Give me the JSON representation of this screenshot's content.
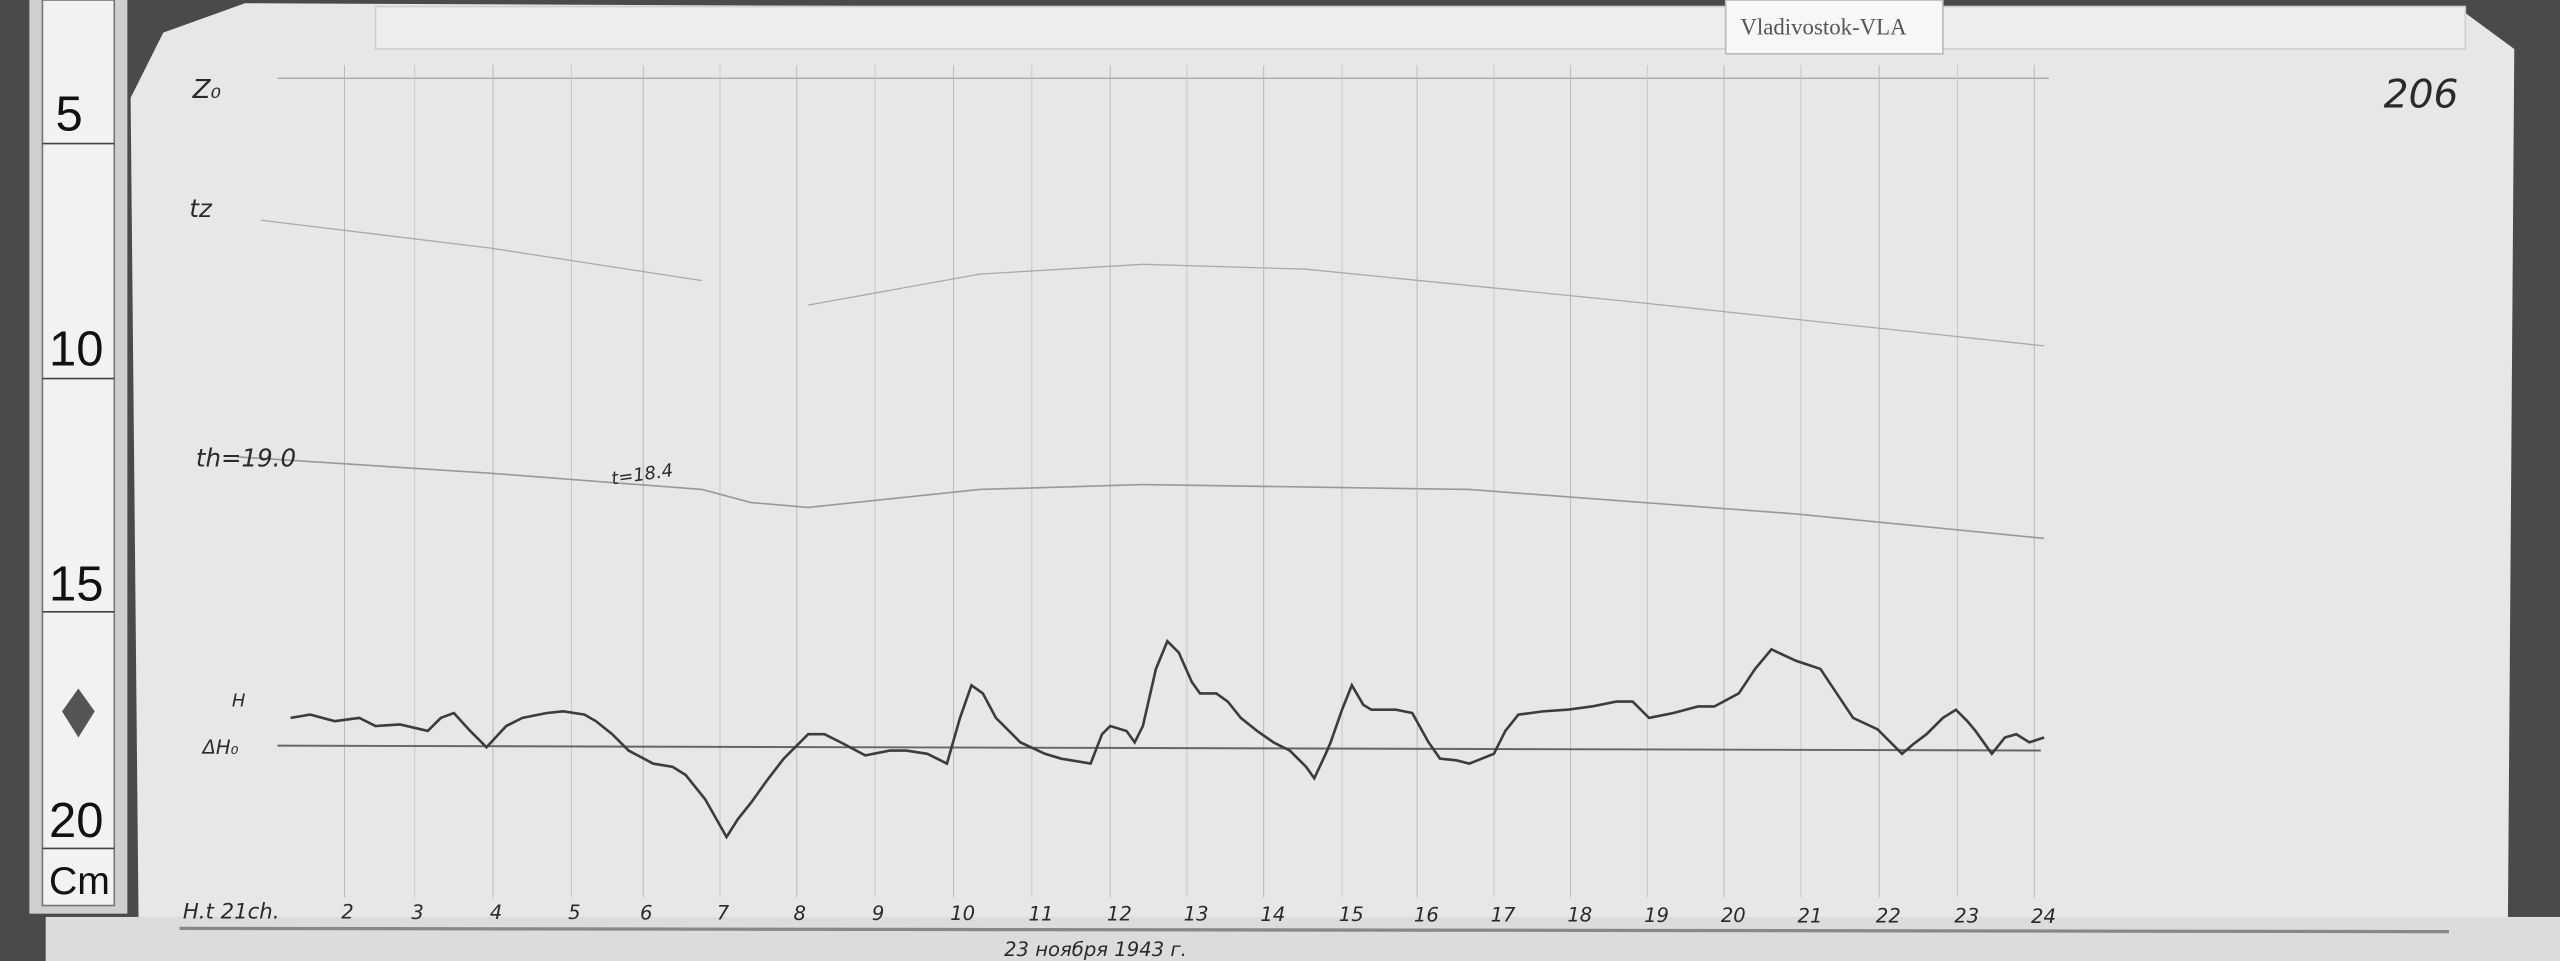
{
  "station_label": "Vladivostok-VLA",
  "sheet_number": "206",
  "ruler": {
    "marks": [
      "5",
      "10",
      "15",
      "20"
    ],
    "unit": "Cm"
  },
  "trace_labels": {
    "z0": "Z₀",
    "tz": "tz",
    "th": "th=19.0",
    "t_mid": "t=18.4",
    "h": "H",
    "delta_h": "ΔH₀"
  },
  "time_axis": {
    "start_label": "H.t 21ch.",
    "hours": [
      "2",
      "3",
      "4",
      "5",
      "6",
      "7",
      "8",
      "9",
      "10",
      "11",
      "12",
      "13",
      "14",
      "15",
      "16",
      "17",
      "18",
      "19",
      "20",
      "21",
      "22",
      "23",
      "24"
    ],
    "date": "23 ноября 1943 г."
  },
  "colors": {
    "paper": "#e6e7e7",
    "trace": "#3c3c3c",
    "ruler": "#f2f2f2",
    "background": "#3a3a3a"
  }
}
